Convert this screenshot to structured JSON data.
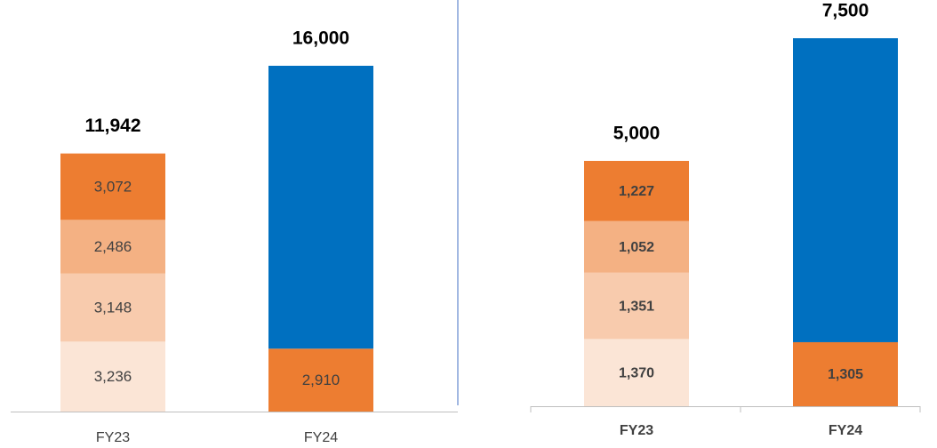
{
  "chart_data": [
    {
      "type": "stacked-bar",
      "ylim": [
        0,
        16000
      ],
      "bars": [
        {
          "category": "FY23",
          "total": 11942,
          "total_label": "11,942",
          "segments": [
            {
              "value": 3236,
              "label": "3,236",
              "color": "#fbe5d6"
            },
            {
              "value": 3148,
              "label": "3,148",
              "color": "#f8cbad"
            },
            {
              "value": 2486,
              "label": "2,486",
              "color": "#f4b183"
            },
            {
              "value": 3072,
              "label": "3,072",
              "color": "#ed7d31"
            }
          ]
        },
        {
          "category": "FY24",
          "total": 16000,
          "total_label": "16,000",
          "segments": [
            {
              "value": 2910,
              "label": "2,910",
              "color": "#ed7d31"
            },
            {
              "value": 13090,
              "color": "#0070c0"
            }
          ]
        }
      ]
    },
    {
      "type": "stacked-bar",
      "ylim": [
        0,
        7500
      ],
      "bars": [
        {
          "category": "FY23",
          "total": 5000,
          "total_label": "5,000",
          "segments": [
            {
              "value": 1370,
              "label": "1,370",
              "color": "#fbe5d6"
            },
            {
              "value": 1351,
              "label": "1,351",
              "color": "#f8cbad"
            },
            {
              "value": 1052,
              "label": "1,052",
              "color": "#f4b183"
            },
            {
              "value": 1227,
              "label": "1,227",
              "color": "#ed7d31"
            }
          ]
        },
        {
          "category": "FY24",
          "total": 7500,
          "total_label": "7,500",
          "segments": [
            {
              "value": 1305,
              "label": "1,305",
              "color": "#ed7d31"
            },
            {
              "value": 6195,
              "color": "#0070c0"
            }
          ]
        }
      ]
    }
  ]
}
